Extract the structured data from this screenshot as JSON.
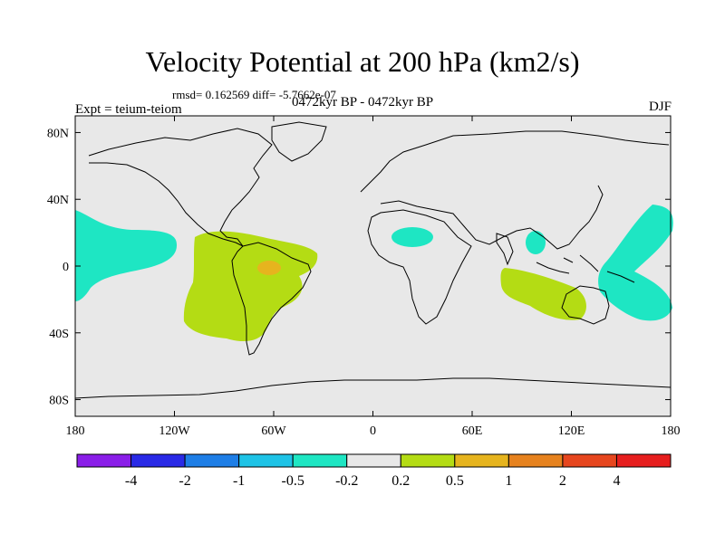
{
  "title": "Velocity Potential at 200 hPa (km2/s)",
  "rmsd_line": "rmsd= 0.162569 diff= -5.7662e-07",
  "expt_label": "Expt = teium-teiom",
  "period_label": "0472kyr BP - 0472kyr BP",
  "season": "DJF",
  "map": {
    "lat_ticks": [
      "80N",
      "40N",
      "0",
      "40S",
      "80S"
    ],
    "lon_ticks": [
      "180",
      "120W",
      "60W",
      "0",
      "60E",
      "120E",
      "180"
    ],
    "lat_values": [
      80,
      40,
      0,
      -40,
      -80
    ],
    "lon_values": [
      -180,
      -120,
      -60,
      0,
      60,
      120,
      180
    ],
    "lat_range": [
      -90,
      90
    ],
    "lon_range": [
      -180,
      180
    ],
    "background_color": "#e8e8e8"
  },
  "colorbar": {
    "labels": [
      "-4",
      "-2",
      "-1",
      "-0.5",
      "-0.2",
      "0.2",
      "0.5",
      "1",
      "2",
      "4"
    ],
    "colors": [
      "#8a1ee8",
      "#2a2ae6",
      "#1e7ee6",
      "#1ec3e6",
      "#1ee6c3",
      "#e8e8e8",
      "#b4dc14",
      "#e6b41e",
      "#e6821e",
      "#e6461e",
      "#e61e1e"
    ]
  }
}
